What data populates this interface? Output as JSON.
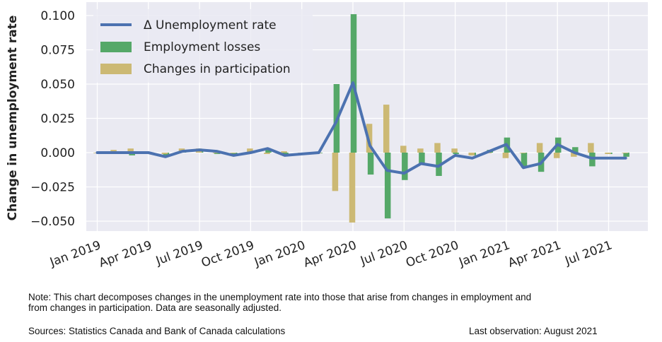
{
  "chart_data": {
    "type": "bar",
    "ylabel": "Change in unemployment rate",
    "ylim": [
      -0.06,
      0.11
    ],
    "yticks": [
      "0.100",
      "0.075",
      "0.050",
      "0.025",
      "0.000",
      "−0.025",
      "−0.050"
    ],
    "ytick_values": [
      0.1,
      0.075,
      0.05,
      0.025,
      0.0,
      -0.025,
      -0.05
    ],
    "xtick_labels": [
      "Jan 2019",
      "Apr 2019",
      "Jul 2019",
      "Oct 2019",
      "Jan 2020",
      "Apr 2020",
      "Jul 2020",
      "Oct 2020",
      "Jan 2021",
      "Apr 2021",
      "Jul 2021"
    ],
    "months": [
      "2019-01",
      "2019-02",
      "2019-03",
      "2019-04",
      "2019-05",
      "2019-06",
      "2019-07",
      "2019-08",
      "2019-09",
      "2019-10",
      "2019-11",
      "2019-12",
      "2020-01",
      "2020-02",
      "2020-03",
      "2020-04",
      "2020-05",
      "2020-06",
      "2020-07",
      "2020-08",
      "2020-09",
      "2020-10",
      "2020-11",
      "2020-12",
      "2021-01",
      "2021-02",
      "2021-03",
      "2021-04",
      "2021-05",
      "2021-06",
      "2021-07",
      "2021-08"
    ],
    "grid": true,
    "legend_position": "top-left",
    "series": [
      {
        "name": "Δ Unemployment rate",
        "kind": "line",
        "color": "#4c72b0",
        "values": [
          0.0,
          0.0,
          0.0,
          0.0,
          -0.003,
          0.001,
          0.002,
          0.001,
          -0.002,
          0.0,
          0.003,
          -0.002,
          -0.001,
          0.0,
          0.022,
          0.051,
          0.005,
          -0.013,
          -0.015,
          -0.008,
          -0.01,
          -0.002,
          -0.004,
          0.001,
          0.006,
          -0.011,
          -0.008,
          0.006,
          0.0,
          -0.004,
          -0.004,
          -0.004
        ]
      },
      {
        "name": "Employment losses",
        "kind": "bar",
        "color": "#55a868",
        "values": [
          null,
          0.0,
          -0.002,
          0.0,
          -0.002,
          0.001,
          0.001,
          -0.001,
          -0.002,
          0.0,
          0.002,
          -0.002,
          -0.001,
          0.0,
          0.05,
          0.101,
          -0.016,
          -0.048,
          -0.02,
          -0.008,
          -0.017,
          -0.001,
          -0.002,
          0.002,
          0.011,
          -0.011,
          -0.014,
          0.011,
          0.004,
          -0.01,
          -0.001,
          -0.003
        ]
      },
      {
        "name": "Changes in participation",
        "kind": "bar",
        "color": "#ccb974",
        "values": [
          0.0,
          0.002,
          0.003,
          0.0,
          -0.001,
          0.003,
          0.003,
          0.0,
          0.0,
          0.003,
          -0.001,
          0.001,
          0.0,
          0.0,
          -0.028,
          -0.051,
          0.021,
          0.035,
          0.005,
          0.003,
          0.007,
          0.003,
          -0.002,
          0.0,
          -0.004,
          0.0,
          0.007,
          -0.004,
          -0.003,
          0.007,
          -0.001,
          0.0
        ]
      }
    ]
  },
  "footer": {
    "note_line1": "Note: This chart decomposes changes in the unemployment rate into those that arise from changes in employment and",
    "note_line2": "from changes in participation. Data are seasonally adjusted.",
    "sources": "Sources: Statistics Canada and Bank of Canada calculations",
    "last_observation": "Last observation: August 2021"
  }
}
